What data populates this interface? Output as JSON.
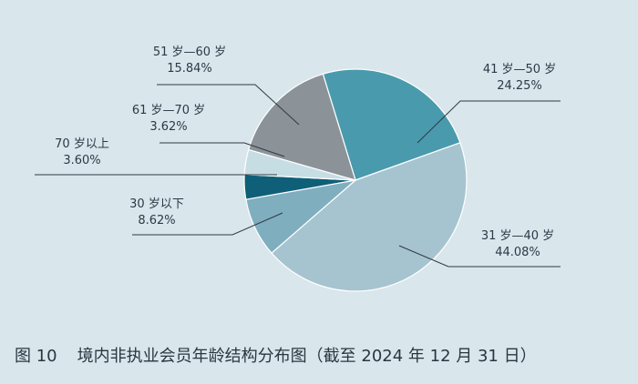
{
  "caption": {
    "figure_number": "图 10",
    "title": "境内非执业会员年龄结构分布图（截至 2024 年 12 月 31 日）"
  },
  "chart_data": {
    "type": "pie",
    "title": "境内非执业会员年龄结构分布图（截至 2024 年 12 月 31 日）",
    "unit": "%",
    "slices": [
      {
        "label": "41 岁—50 岁",
        "value": 24.25,
        "display": "24.25%",
        "color": "#4a9aad"
      },
      {
        "label": "31 岁—40 岁",
        "value": 44.08,
        "display": "44.08%",
        "color": "#a6c4cf"
      },
      {
        "label": "30 岁以下",
        "value": 8.62,
        "display": "8.62%",
        "color": "#7faebf"
      },
      {
        "label": "70 岁以上",
        "value": 3.6,
        "display": "3.60%",
        "color": "#0f5f78"
      },
      {
        "label": "61 岁—70 岁",
        "value": 3.62,
        "display": "3.62%",
        "color": "#c7dde4"
      },
      {
        "label": "51 岁—60 岁",
        "value": 15.84,
        "display": "15.84%",
        "color": "#8b9399"
      }
    ]
  }
}
